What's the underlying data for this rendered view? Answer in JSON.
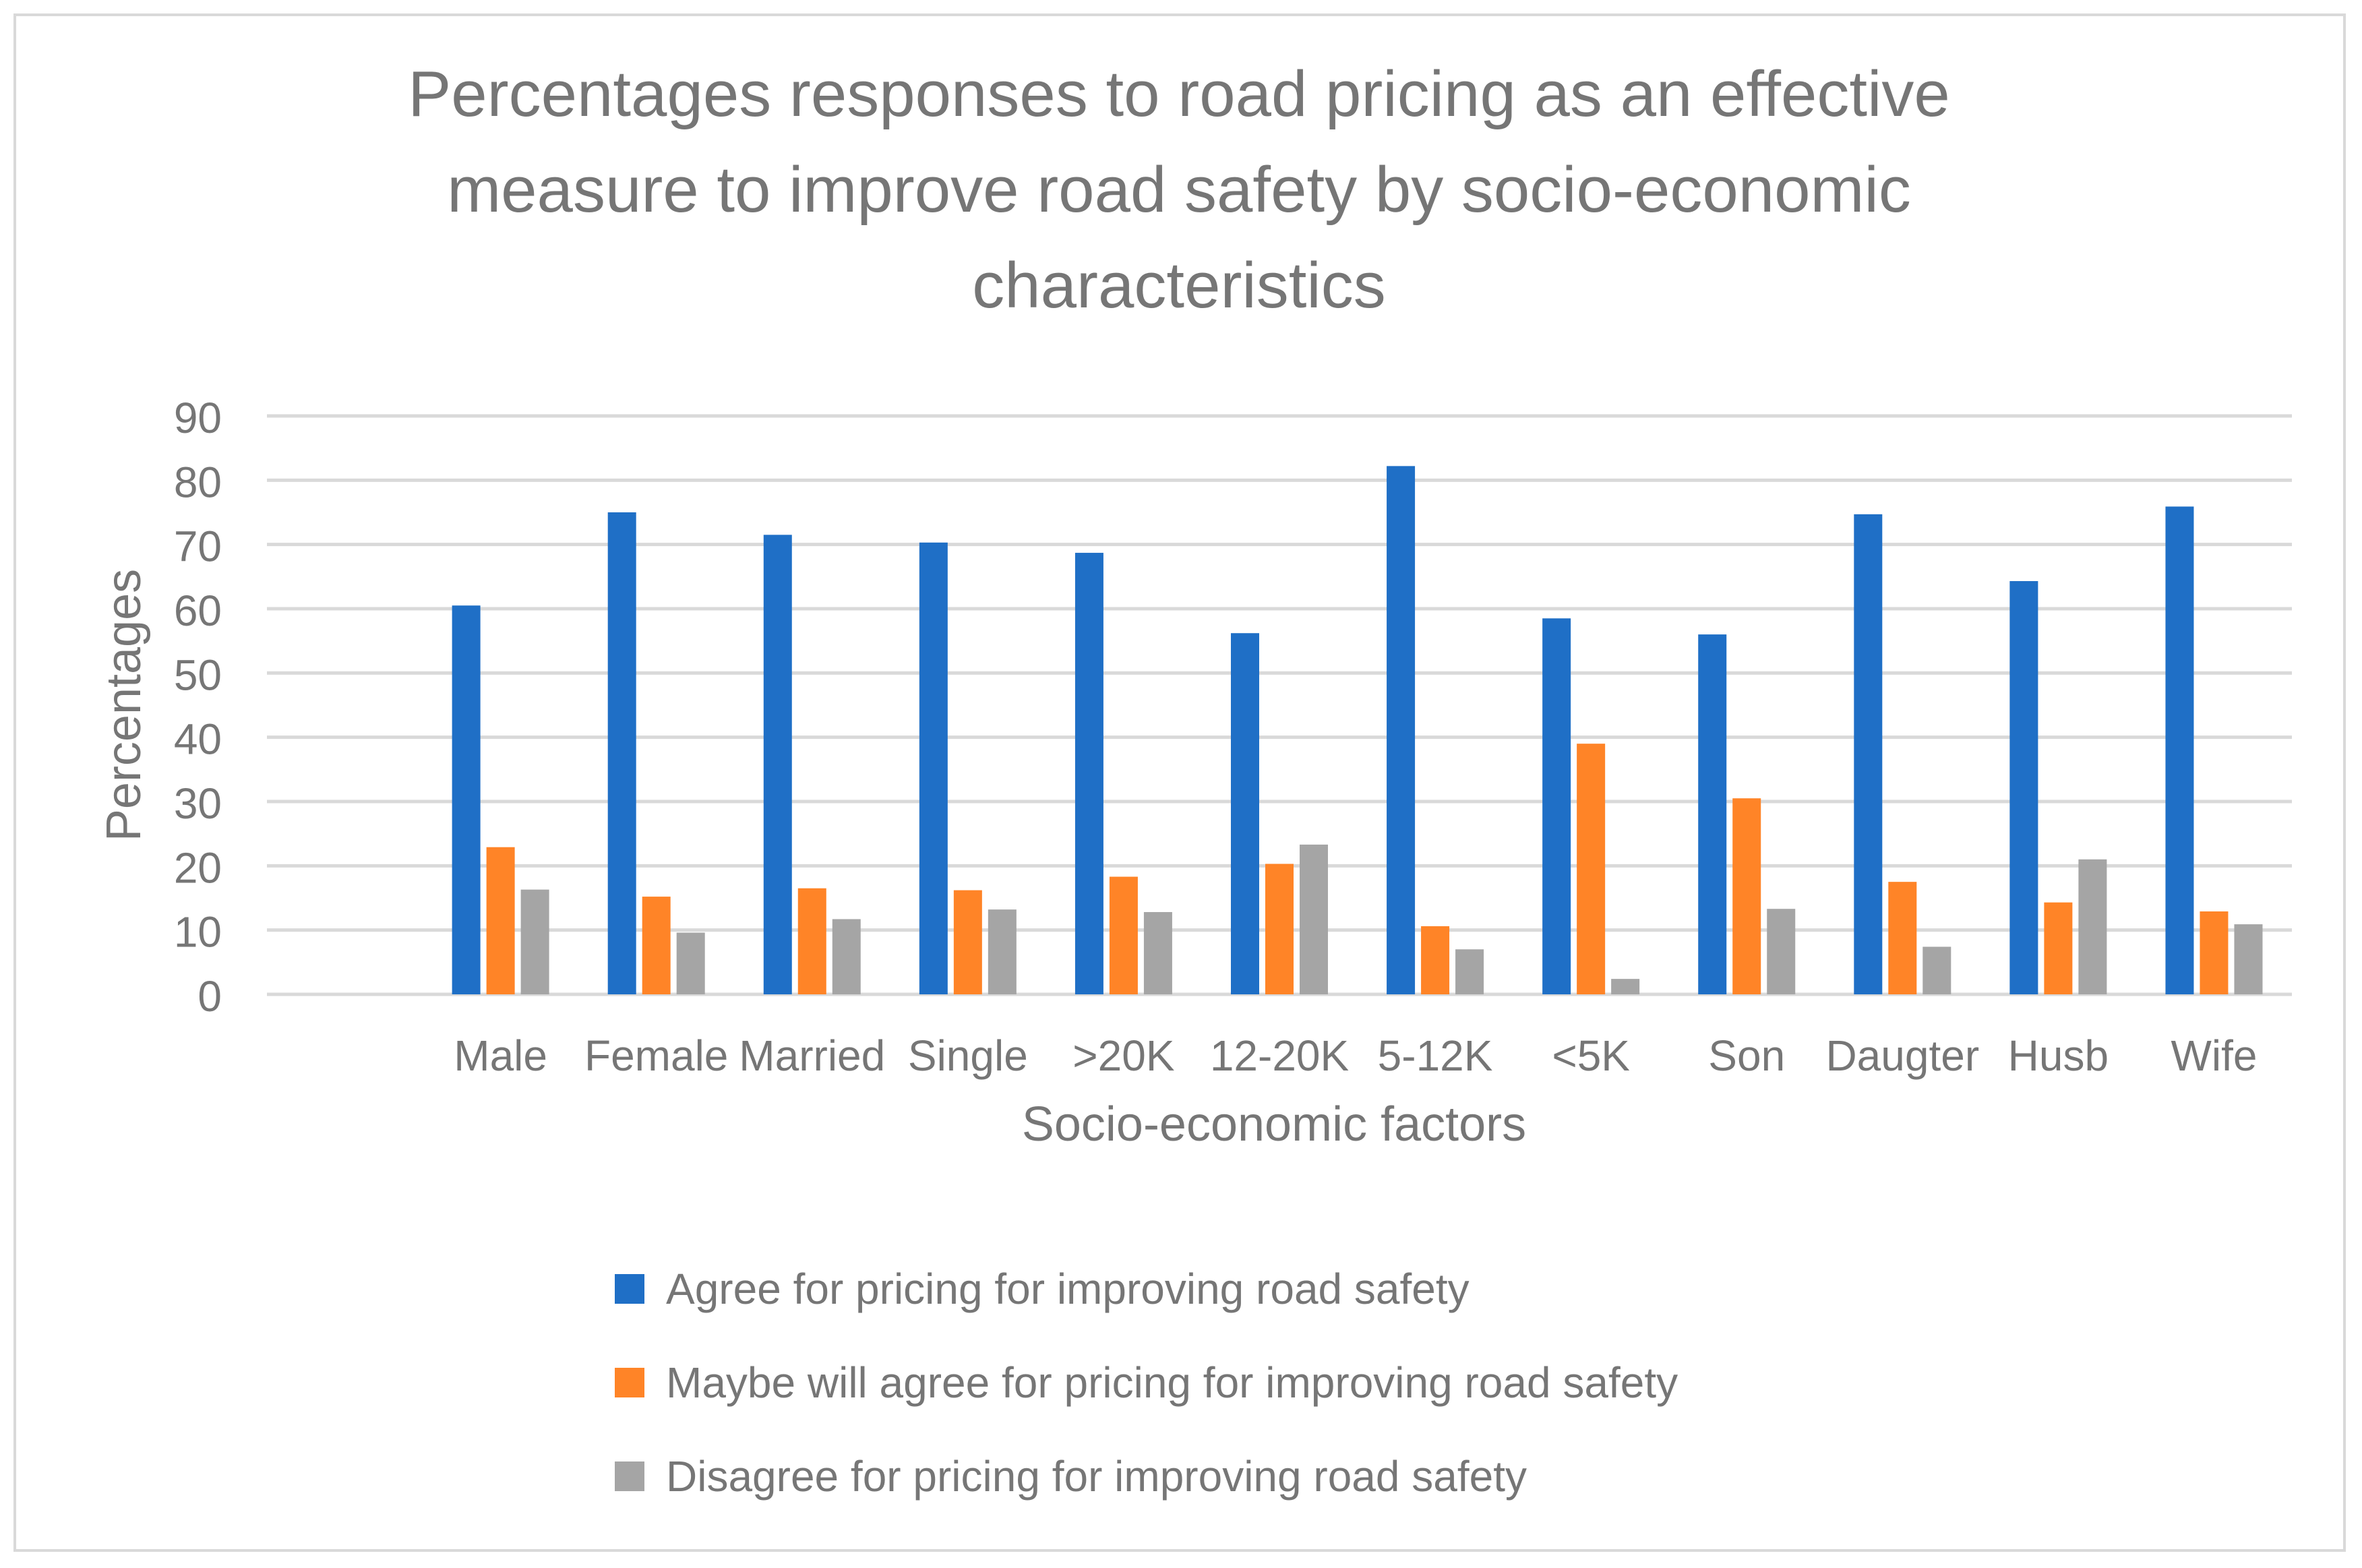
{
  "chart_data": {
    "type": "bar",
    "title_lines": [
      "Percentages responses to road pricing as an effective",
      "measure to improve road safety by socio-economic",
      "characteristics"
    ],
    "xlabel": "Socio-economic factors",
    "ylabel": "Percentages",
    "ylim": [
      0,
      90
    ],
    "yticks": [
      "0",
      "10",
      "20",
      "30",
      "40",
      "50",
      "60",
      "70",
      "80",
      "90"
    ],
    "categories": [
      "",
      "Male",
      "Female",
      "Married",
      "Single",
      ">20K",
      "12-20K",
      "5-12K",
      "<5K",
      "Son",
      "Daugter",
      "Husb",
      "Wife"
    ],
    "series": [
      {
        "name": "Agree for pricing for improving road safety",
        "color": "#1f6fc6",
        "values": [
          null,
          60.5,
          75,
          71.5,
          70.3,
          68.7,
          56.2,
          82.2,
          58.5,
          56,
          74.7,
          64.3,
          75.9
        ]
      },
      {
        "name": "Maybe will agree for pricing for improving road safety",
        "color": "#ff8427",
        "values": [
          null,
          22.9,
          15.2,
          16.5,
          16.2,
          18.3,
          20.3,
          10.6,
          39,
          30.5,
          17.5,
          14.3,
          12.9
        ]
      },
      {
        "name": "Disagree for pricing for improving road safety",
        "color": "#a5a5a5",
        "values": [
          null,
          16.3,
          9.6,
          11.7,
          13.2,
          12.8,
          23.3,
          7,
          2.4,
          13.3,
          7.4,
          21,
          10.9
        ]
      }
    ],
    "grid": true,
    "legend_position": "bottom"
  }
}
